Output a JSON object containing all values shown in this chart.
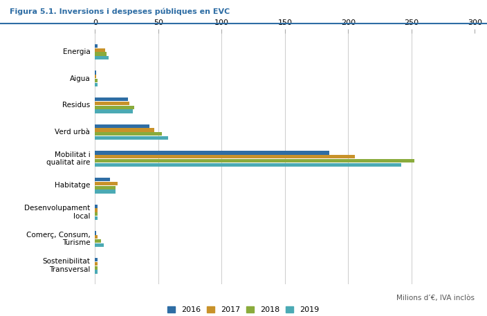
{
  "title": "Figura 5.1. Inversions i despeses públiques en EVC",
  "categories": [
    "Energia",
    "Aigua",
    "Residus",
    "Verd urbà",
    "Mobilitat i\nqualitat aire",
    "Habitatge",
    "Desenvolupament\nlocal",
    "Comerç, Consum,\nTurisme",
    "Sostenibilitat\nTransversal"
  ],
  "years": [
    "2016",
    "2017",
    "2018",
    "2019"
  ],
  "colors": [
    "#2e6da4",
    "#c8922a",
    "#8aab3c",
    "#4baab4"
  ],
  "values": {
    "2016": [
      2,
      1,
      26,
      43,
      185,
      12,
      2,
      1,
      2
    ],
    "2017": [
      8,
      1,
      27,
      47,
      205,
      18,
      2,
      2,
      2
    ],
    "2018": [
      9,
      2,
      31,
      53,
      252,
      16,
      2,
      5,
      2
    ],
    "2019": [
      11,
      2,
      30,
      58,
      242,
      16,
      2,
      7,
      2
    ]
  },
  "xlim": [
    0,
    300
  ],
  "xticks": [
    0,
    50,
    100,
    150,
    200,
    250,
    300
  ],
  "xlabel": "Milions d’€, IVA inclòs",
  "background_color": "#ffffff",
  "title_color": "#2e6da4",
  "bar_height": 0.15
}
